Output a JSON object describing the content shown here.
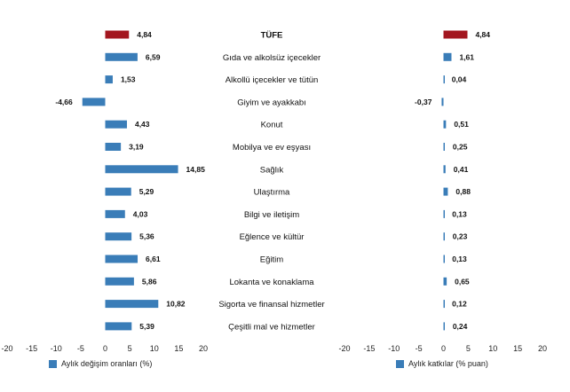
{
  "colors": {
    "default_bar": "#3a7db8",
    "highlight_bar": "#a3161f",
    "axis_text": "#222222",
    "grid": "#d9d9d9"
  },
  "chart_data": [
    {
      "type": "bar",
      "orientation": "horizontal",
      "categories": [
        "TÜFE",
        "Gıda ve alkolsüz içecekler",
        "Alkollü içecekler ve tütün",
        "Giyim ve ayakkabı",
        "Konut",
        "Mobilya ve ev eşyası",
        "Sağlık",
        "Ulaştırma",
        "Bilgi ve iletişim",
        "Eğlence ve kültür",
        "Eğitim",
        "Lokanta ve konaklama",
        "Sigorta ve finansal hizmetler",
        "Çeşitli mal ve hizmetler"
      ],
      "values": [
        4.84,
        6.59,
        1.53,
        -4.66,
        4.43,
        3.19,
        14.85,
        5.29,
        4.03,
        5.36,
        6.61,
        5.86,
        10.82,
        5.39
      ],
      "value_labels": [
        "4,84",
        "6,59",
        "1,53",
        "-4,66",
        "4,43",
        "3,19",
        "14,85",
        "5,29",
        "4,03",
        "5,36",
        "6,61",
        "5,86",
        "10,82",
        "5,39"
      ],
      "highlight_index": 0,
      "xlim": [
        -20,
        20
      ],
      "xticks": [
        -20,
        -15,
        -10,
        -5,
        0,
        5,
        10,
        15,
        20
      ],
      "legend": "Aylık değişim oranları (%)",
      "legend_position": "bottom-left",
      "grid": false
    },
    {
      "type": "bar",
      "orientation": "horizontal",
      "categories": [
        "TÜFE",
        "Gıda ve alkolsüz içecekler",
        "Alkollü içecekler ve tütün",
        "Giyim ve ayakkabı",
        "Konut",
        "Mobilya ve ev eşyası",
        "Sağlık",
        "Ulaştırma",
        "Bilgi ve iletişim",
        "Eğlence ve kültür",
        "Eğitim",
        "Lokanta ve konaklama",
        "Sigorta ve finansal hizmetler",
        "Çeşitli mal ve hizmetler"
      ],
      "values": [
        4.84,
        1.61,
        0.04,
        -0.37,
        0.51,
        0.25,
        0.41,
        0.88,
        0.13,
        0.23,
        0.13,
        0.65,
        0.12,
        0.24
      ],
      "value_labels": [
        "4,84",
        "1,61",
        "0,04",
        "-0,37",
        "0,51",
        "0,25",
        "0,41",
        "0,88",
        "0,13",
        "0,23",
        "0,13",
        "0,65",
        "0,12",
        "0,24"
      ],
      "highlight_index": 0,
      "xlim": [
        -20,
        20
      ],
      "xticks": [
        -20,
        -15,
        -10,
        -5,
        0,
        5,
        10,
        15,
        20
      ],
      "legend": "Aylık katkılar (% puan)",
      "legend_position": "bottom-left",
      "grid": false
    }
  ]
}
